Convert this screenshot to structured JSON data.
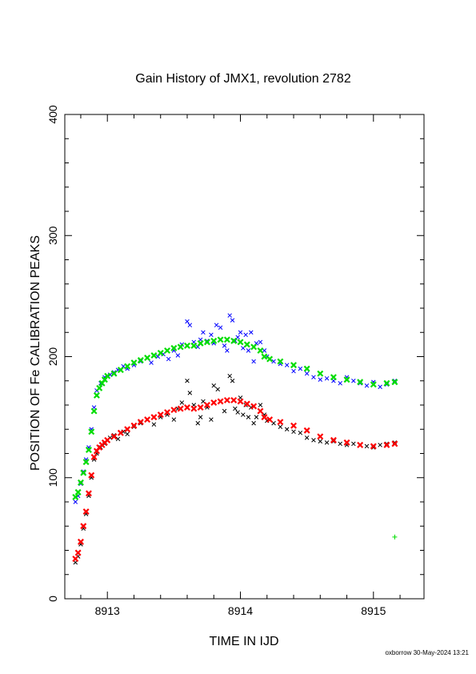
{
  "chart_data": {
    "type": "scatter",
    "title": "Gain History of JMX1, revolution 2782",
    "xlabel": "TIME IN IJD",
    "ylabel": "POSITION OF Fe CALIBRATION PEAKS",
    "xlim": [
      8912.68,
      8915.38
    ],
    "ylim": [
      0,
      400
    ],
    "x_ticks": [
      "8913",
      "8914",
      "8915"
    ],
    "x_tick_values": [
      8913,
      8914,
      8915
    ],
    "y_ticks": [
      "0",
      "100",
      "200",
      "300",
      "400"
    ],
    "y_tick_values": [
      0,
      100,
      200,
      300,
      400
    ],
    "grid": false,
    "legend": "none",
    "series": [
      {
        "color": "#0000ff",
        "marker": "x",
        "points": [
          [
            8912.76,
            80
          ],
          [
            8912.78,
            85
          ],
          [
            8912.8,
            95
          ],
          [
            8912.82,
            105
          ],
          [
            8912.84,
            115
          ],
          [
            8912.86,
            125
          ],
          [
            8912.88,
            140
          ],
          [
            8912.9,
            158
          ],
          [
            8912.92,
            172
          ],
          [
            8912.95,
            178
          ],
          [
            8912.98,
            183
          ],
          [
            8913.02,
            185
          ],
          [
            8913.05,
            187
          ],
          [
            8913.08,
            189
          ],
          [
            8913.12,
            192
          ],
          [
            8913.15,
            190
          ],
          [
            8913.2,
            193
          ],
          [
            8913.25,
            196
          ],
          [
            8913.3,
            199
          ],
          [
            8913.33,
            195
          ],
          [
            8913.38,
            200
          ],
          [
            8913.42,
            202
          ],
          [
            8913.46,
            198
          ],
          [
            8913.5,
            205
          ],
          [
            8913.53,
            201
          ],
          [
            8913.56,
            210
          ],
          [
            8913.6,
            229
          ],
          [
            8913.62,
            226
          ],
          [
            8913.65,
            212
          ],
          [
            8913.68,
            208
          ],
          [
            8913.7,
            214
          ],
          [
            8913.72,
            220
          ],
          [
            8913.75,
            213
          ],
          [
            8913.78,
            218
          ],
          [
            8913.8,
            211
          ],
          [
            8913.82,
            226
          ],
          [
            8913.85,
            224
          ],
          [
            8913.88,
            209
          ],
          [
            8913.9,
            205
          ],
          [
            8913.92,
            234
          ],
          [
            8913.94,
            230
          ],
          [
            8913.96,
            213
          ],
          [
            8913.98,
            216
          ],
          [
            8914.0,
            220
          ],
          [
            8914.02,
            207
          ],
          [
            8914.04,
            218
          ],
          [
            8914.06,
            205
          ],
          [
            8914.08,
            220
          ],
          [
            8914.1,
            196
          ],
          [
            8914.12,
            211
          ],
          [
            8914.15,
            212
          ],
          [
            8914.18,
            205
          ],
          [
            8914.2,
            200
          ],
          [
            8914.25,
            196
          ],
          [
            8914.3,
            194
          ],
          [
            8914.35,
            193
          ],
          [
            8914.4,
            188
          ],
          [
            8914.45,
            190
          ],
          [
            8914.5,
            186
          ],
          [
            8914.55,
            183
          ],
          [
            8914.6,
            181
          ],
          [
            8914.65,
            182
          ],
          [
            8914.7,
            180
          ],
          [
            8914.75,
            178
          ],
          [
            8914.8,
            183
          ],
          [
            8914.85,
            180
          ],
          [
            8914.9,
            178
          ],
          [
            8914.95,
            176
          ],
          [
            8915.0,
            179
          ],
          [
            8915.05,
            175
          ],
          [
            8915.1,
            177
          ],
          [
            8915.16,
            180
          ]
        ]
      },
      {
        "color": "#00dd00",
        "marker": "x",
        "points": [
          [
            8912.76,
            84
          ],
          [
            8912.78,
            88
          ],
          [
            8912.8,
            96
          ],
          [
            8912.82,
            104
          ],
          [
            8912.84,
            113
          ],
          [
            8912.86,
            123
          ],
          [
            8912.88,
            138
          ],
          [
            8912.9,
            155
          ],
          [
            8912.92,
            168
          ],
          [
            8912.94,
            174
          ],
          [
            8912.96,
            178
          ],
          [
            8912.98,
            181
          ],
          [
            8913.0,
            184
          ],
          [
            8913.05,
            186
          ],
          [
            8913.1,
            189
          ],
          [
            8913.15,
            192
          ],
          [
            8913.2,
            195
          ],
          [
            8913.25,
            197
          ],
          [
            8913.3,
            199
          ],
          [
            8913.35,
            201
          ],
          [
            8913.4,
            203
          ],
          [
            8913.45,
            205
          ],
          [
            8913.5,
            207
          ],
          [
            8913.55,
            208
          ],
          [
            8913.6,
            209
          ],
          [
            8913.65,
            209
          ],
          [
            8913.7,
            211
          ],
          [
            8913.75,
            212
          ],
          [
            8913.8,
            213
          ],
          [
            8913.85,
            214
          ],
          [
            8913.9,
            214
          ],
          [
            8913.95,
            213
          ],
          [
            8914.0,
            212
          ],
          [
            8914.05,
            210
          ],
          [
            8914.1,
            208
          ],
          [
            8914.15,
            205
          ],
          [
            8914.18,
            200
          ],
          [
            8914.22,
            198
          ],
          [
            8914.3,
            196
          ],
          [
            8914.4,
            193
          ],
          [
            8914.5,
            190
          ],
          [
            8914.6,
            186
          ],
          [
            8914.7,
            183
          ],
          [
            8914.8,
            181
          ],
          [
            8914.9,
            179
          ],
          [
            8915.0,
            177
          ],
          [
            8915.1,
            178
          ],
          [
            8915.16,
            179
          ],
          [
            8915.16,
            51
          ]
        ]
      },
      {
        "color": "#000000",
        "marker": "x",
        "points": [
          [
            8912.76,
            30
          ],
          [
            8912.78,
            35
          ],
          [
            8912.8,
            45
          ],
          [
            8912.82,
            58
          ],
          [
            8912.84,
            70
          ],
          [
            8912.86,
            85
          ],
          [
            8912.88,
            100
          ],
          [
            8912.9,
            115
          ],
          [
            8912.92,
            120
          ],
          [
            8912.95,
            125
          ],
          [
            8912.98,
            128
          ],
          [
            8913.02,
            133
          ],
          [
            8913.05,
            135
          ],
          [
            8913.08,
            132
          ],
          [
            8913.12,
            138
          ],
          [
            8913.15,
            136
          ],
          [
            8913.2,
            142
          ],
          [
            8913.25,
            145
          ],
          [
            8913.3,
            148
          ],
          [
            8913.35,
            144
          ],
          [
            8913.4,
            150
          ],
          [
            8913.45,
            152
          ],
          [
            8913.5,
            148
          ],
          [
            8913.53,
            157
          ],
          [
            8913.56,
            162
          ],
          [
            8913.6,
            180
          ],
          [
            8913.62,
            170
          ],
          [
            8913.65,
            160
          ],
          [
            8913.68,
            145
          ],
          [
            8913.7,
            150
          ],
          [
            8913.72,
            163
          ],
          [
            8913.75,
            158
          ],
          [
            8913.78,
            148
          ],
          [
            8913.8,
            176
          ],
          [
            8913.83,
            173
          ],
          [
            8913.85,
            163
          ],
          [
            8913.88,
            155
          ],
          [
            8913.92,
            184
          ],
          [
            8913.94,
            180
          ],
          [
            8913.96,
            157
          ],
          [
            8913.98,
            154
          ],
          [
            8914.0,
            166
          ],
          [
            8914.02,
            152
          ],
          [
            8914.04,
            160
          ],
          [
            8914.06,
            150
          ],
          [
            8914.08,
            158
          ],
          [
            8914.1,
            145
          ],
          [
            8914.12,
            150
          ],
          [
            8914.15,
            160
          ],
          [
            8914.18,
            152
          ],
          [
            8914.2,
            147
          ],
          [
            8914.25,
            145
          ],
          [
            8914.3,
            142
          ],
          [
            8914.35,
            140
          ],
          [
            8914.4,
            138
          ],
          [
            8914.45,
            137
          ],
          [
            8914.5,
            133
          ],
          [
            8914.55,
            131
          ],
          [
            8914.6,
            130
          ],
          [
            8914.65,
            129
          ],
          [
            8914.7,
            130
          ],
          [
            8914.75,
            128
          ],
          [
            8914.8,
            127
          ],
          [
            8914.85,
            128
          ],
          [
            8914.9,
            127
          ],
          [
            8914.95,
            126
          ],
          [
            8915.0,
            125
          ],
          [
            8915.05,
            127
          ],
          [
            8915.1,
            128
          ],
          [
            8915.16,
            129
          ]
        ]
      },
      {
        "color": "#ff0000",
        "marker": "x",
        "points": [
          [
            8912.76,
            33
          ],
          [
            8912.78,
            38
          ],
          [
            8912.8,
            47
          ],
          [
            8912.82,
            60
          ],
          [
            8912.84,
            72
          ],
          [
            8912.86,
            87
          ],
          [
            8912.88,
            102
          ],
          [
            8912.9,
            117
          ],
          [
            8912.92,
            122
          ],
          [
            8912.94,
            125
          ],
          [
            8912.96,
            127
          ],
          [
            8912.98,
            129
          ],
          [
            8913.0,
            131
          ],
          [
            8913.05,
            134
          ],
          [
            8913.1,
            137
          ],
          [
            8913.15,
            140
          ],
          [
            8913.2,
            143
          ],
          [
            8913.25,
            146
          ],
          [
            8913.3,
            148
          ],
          [
            8913.35,
            150
          ],
          [
            8913.4,
            152
          ],
          [
            8913.45,
            154
          ],
          [
            8913.5,
            156
          ],
          [
            8913.55,
            157
          ],
          [
            8913.6,
            158
          ],
          [
            8913.65,
            157
          ],
          [
            8913.7,
            158
          ],
          [
            8913.75,
            160
          ],
          [
            8913.8,
            162
          ],
          [
            8913.85,
            163
          ],
          [
            8913.9,
            164
          ],
          [
            8913.95,
            164
          ],
          [
            8914.0,
            163
          ],
          [
            8914.05,
            161
          ],
          [
            8914.1,
            159
          ],
          [
            8914.15,
            155
          ],
          [
            8914.18,
            150
          ],
          [
            8914.22,
            148
          ],
          [
            8914.3,
            146
          ],
          [
            8914.4,
            143
          ],
          [
            8914.5,
            139
          ],
          [
            8914.6,
            134
          ],
          [
            8914.7,
            131
          ],
          [
            8914.8,
            129
          ],
          [
            8914.9,
            127
          ],
          [
            8915.0,
            126
          ],
          [
            8915.1,
            127
          ],
          [
            8915.16,
            128
          ]
        ]
      }
    ]
  },
  "footer_text": "oxborrow 30-May-2024 13:21"
}
